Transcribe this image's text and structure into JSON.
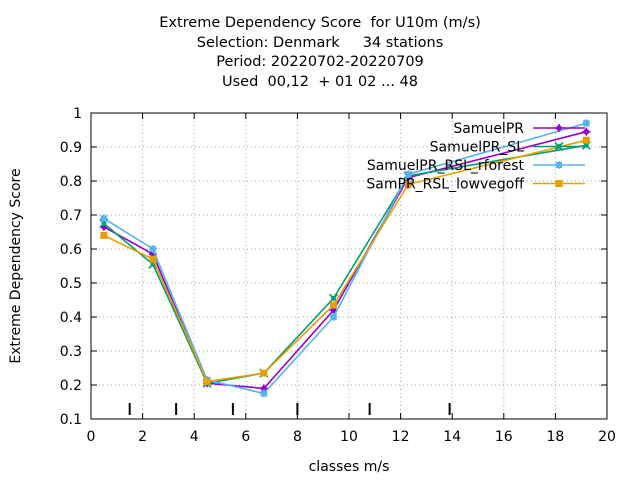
{
  "chart_data": {
    "type": "line",
    "title_lines": [
      "Extreme Dependency Score  for U10m (m/s)",
      "Selection: Denmark     34 stations",
      "Period: 20220702-20220709",
      "Used  00,12  + 01 02 ... 48"
    ],
    "xlabel": "classes m/s",
    "ylabel": "Extreme Dependency Score",
    "xlim": [
      0,
      20
    ],
    "ylim": [
      0.1,
      1.0
    ],
    "xticks": [
      "0",
      "2",
      "4",
      "6",
      "8",
      "10",
      "12",
      "14",
      "16",
      "18",
      "20"
    ],
    "yticks": [
      "0.1",
      "0.2",
      "0.3",
      "0.4",
      "0.5",
      "0.6",
      "0.7",
      "0.8",
      "0.9",
      "1"
    ],
    "grid": true,
    "legend_position": "top-right",
    "class_boundaries": [
      1.5,
      3.3,
      5.5,
      8.0,
      10.8,
      13.9
    ],
    "series": [
      {
        "name": "SamuelPR",
        "color": "#9400d3",
        "marker": "plus",
        "x": [
          0.5,
          2.4,
          4.5,
          6.7,
          9.4,
          12.3,
          19.2
        ],
        "y": [
          0.665,
          0.585,
          0.205,
          0.19,
          0.42,
          0.81,
          0.945
        ]
      },
      {
        "name": "SamuelPR_SL",
        "color": "#009e73",
        "marker": "cross",
        "x": [
          0.5,
          2.4,
          4.5,
          6.7,
          9.4,
          12.3,
          19.2
        ],
        "y": [
          0.675,
          0.555,
          0.205,
          0.235,
          0.455,
          0.815,
          0.905
        ]
      },
      {
        "name": "SamuelPR_RSL_rforest",
        "color": "#56b4e9",
        "marker": "star",
        "x": [
          0.5,
          2.4,
          4.5,
          6.7,
          9.4,
          12.3,
          19.2
        ],
        "y": [
          0.69,
          0.6,
          0.215,
          0.175,
          0.4,
          0.82,
          0.97
        ]
      },
      {
        "name": "SamPR_RSL_lowvegoff",
        "color": "#e69f00",
        "marker": "square",
        "x": [
          0.5,
          2.4,
          4.5,
          6.7,
          9.4,
          12.3,
          19.2
        ],
        "y": [
          0.64,
          0.57,
          0.21,
          0.235,
          0.435,
          0.79,
          0.92
        ]
      }
    ]
  }
}
